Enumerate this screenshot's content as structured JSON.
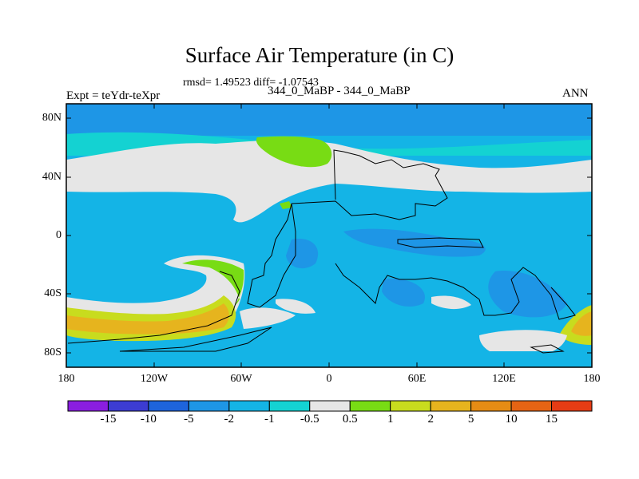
{
  "title": "Surface Air Temperature (in C)",
  "subtitle": "rmsd= 1.49523 diff= -1.07543",
  "left_label": "Expt = teYdr-teXpr",
  "center_label": "344_0_MaBP - 344_0_MaBP",
  "right_label": "ANN",
  "lat_labels": [
    "80N",
    "40N",
    "0",
    "40S",
    "80S"
  ],
  "lon_labels": [
    "180",
    "120W",
    "60W",
    "0",
    "60E",
    "120E",
    "180"
  ],
  "colorbar": {
    "colors": [
      "#8a1ee0",
      "#3c3cd2",
      "#1e64dc",
      "#1e96e6",
      "#14b4e6",
      "#14d2d2",
      "#e6e6e6",
      "#78dc14",
      "#c8dc1e",
      "#e6b41e",
      "#e68c14",
      "#e66414",
      "#e63c14"
    ],
    "labels": [
      "-15",
      "-10",
      "-5",
      "-2",
      "-1",
      "-0.5",
      "0.5",
      "1",
      "2",
      "5",
      "10",
      "15"
    ]
  }
}
